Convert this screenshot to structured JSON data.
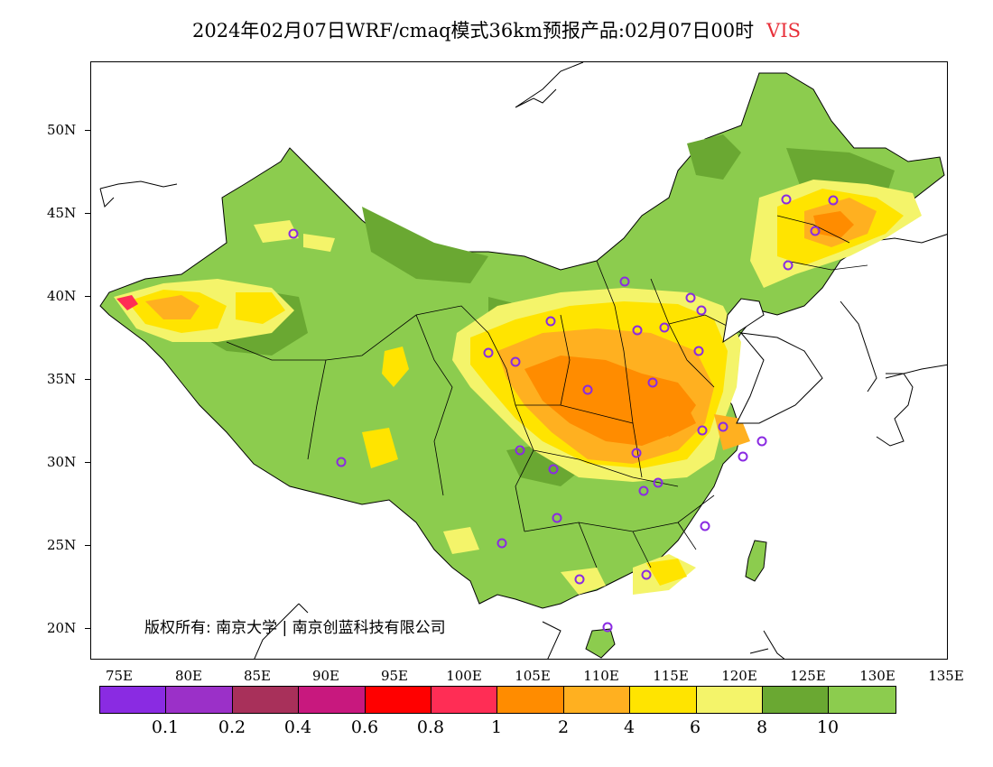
{
  "title": {
    "main": "2024年02月07日WRF/cmaq模式36km预报产品:02月07日00时",
    "variable": "VIS"
  },
  "copyright": "版权所有: 南京大学 | 南京创蓝科技有限公司",
  "latitude_labels": [
    "50N",
    "45N",
    "40N",
    "35N",
    "30N",
    "25N",
    "20N"
  ],
  "longitude_labels": [
    "75E",
    "80E",
    "85E",
    "90E",
    "95E",
    "100E",
    "105E",
    "110E",
    "115E",
    "120E",
    "125E",
    "130E",
    "135E"
  ],
  "colorbar": {
    "colors": [
      "#8a2be2",
      "#9b30c8",
      "#a8305a",
      "#c8187e",
      "#ff0000",
      "#ff2d55",
      "#ff8c00",
      "#ffb020",
      "#ffe400",
      "#f4f46a",
      "#6aa832",
      "#8ccc4e"
    ],
    "tick_labels": [
      "0.1",
      "0.2",
      "0.4",
      "0.6",
      "0.8",
      "1",
      "2",
      "4",
      "6",
      "8",
      "10"
    ]
  },
  "map": {
    "land_color": "#8ccc4e",
    "dark_green": "#6aa832",
    "light_yellow": "#f4f46a",
    "yellow": "#ffe400",
    "orange": "#ffb020",
    "deep_orange": "#ff8c00",
    "red": "#ff2d55",
    "station_color": "#8a2be2"
  }
}
